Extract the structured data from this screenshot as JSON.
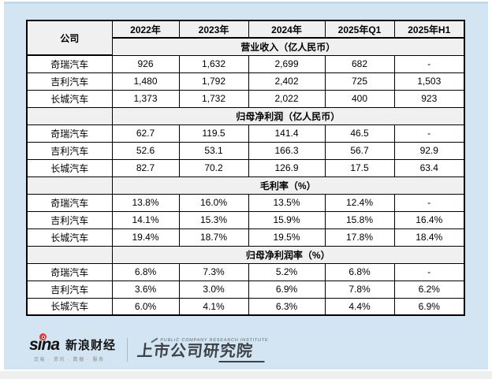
{
  "chart_data": {
    "type": "table",
    "columns": [
      "公司",
      "2022年",
      "2023年",
      "2024年",
      "2025年Q1",
      "2025年H1"
    ],
    "sections": [
      {
        "label": "营业收入（亿人民币）",
        "rows": [
          [
            "奇瑞汽车",
            "926",
            "1,632",
            "2,699",
            "682",
            "-"
          ],
          [
            "吉利汽车",
            "1,480",
            "1,792",
            "2,402",
            "725",
            "1,503"
          ],
          [
            "长城汽车",
            "1,373",
            "1,732",
            "2,022",
            "400",
            "923"
          ]
        ]
      },
      {
        "label": "归母净利润（亿人民币）",
        "rows": [
          [
            "奇瑞汽车",
            "62.7",
            "119.5",
            "141.4",
            "46.5",
            "-"
          ],
          [
            "吉利汽车",
            "52.6",
            "53.1",
            "166.3",
            "56.7",
            "92.9"
          ],
          [
            "长城汽车",
            "82.7",
            "70.2",
            "126.9",
            "17.5",
            "63.4"
          ]
        ]
      },
      {
        "label": "毛利率（%）",
        "rows": [
          [
            "奇瑞汽车",
            "13.8%",
            "16.0%",
            "13.5%",
            "12.4%",
            "-"
          ],
          [
            "吉利汽车",
            "14.1%",
            "15.3%",
            "15.9%",
            "15.8%",
            "16.4%"
          ],
          [
            "长城汽车",
            "19.4%",
            "18.7%",
            "19.5%",
            "17.8%",
            "18.4%"
          ]
        ]
      },
      {
        "label": "归母净利润率（%）",
        "rows": [
          [
            "奇瑞汽车",
            "6.8%",
            "7.3%",
            "5.2%",
            "6.8%",
            "-"
          ],
          [
            "吉利汽车",
            "3.6%",
            "3.0%",
            "6.9%",
            "7.8%",
            "6.2%"
          ],
          [
            "长城汽车",
            "6.0%",
            "4.1%",
            "6.3%",
            "4.4%",
            "6.9%"
          ]
        ]
      }
    ]
  },
  "footer": {
    "sina_wordmark": "sina",
    "sina_brand": "新浪财经",
    "sina_tagline": "交易 · 资讯 · 数据 · 服务",
    "institute_subtitle": "PUBLIC COMPANY RESEARCH INSTITUTE",
    "institute_name": "上市公司研究院"
  },
  "colors": {
    "panel_background": "#d3e5f2",
    "header_cell_background": "#f0f0f0",
    "table_border": "#000000",
    "sina_red": "#e4393c",
    "institute_text": "#3f4347"
  }
}
